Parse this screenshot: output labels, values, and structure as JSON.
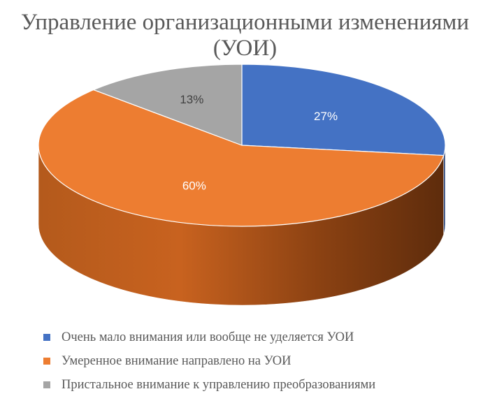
{
  "chart_data": {
    "type": "pie",
    "title": "Управление организационными изменениями (УОИ)",
    "categories": [
      "Очень мало внимания или вообще не уделяется УОИ",
      "Умеренное внимание направлено на УОИ",
      "Пристальное внимание к управлению преобразованиями"
    ],
    "values": [
      27,
      60,
      13
    ],
    "data_labels": [
      "27%",
      "60%",
      "13%"
    ],
    "colors": [
      "#4472C4",
      "#ED7D31",
      "#A5A5A5"
    ],
    "style": "3d-tilted",
    "legend_position": "bottom-left"
  }
}
